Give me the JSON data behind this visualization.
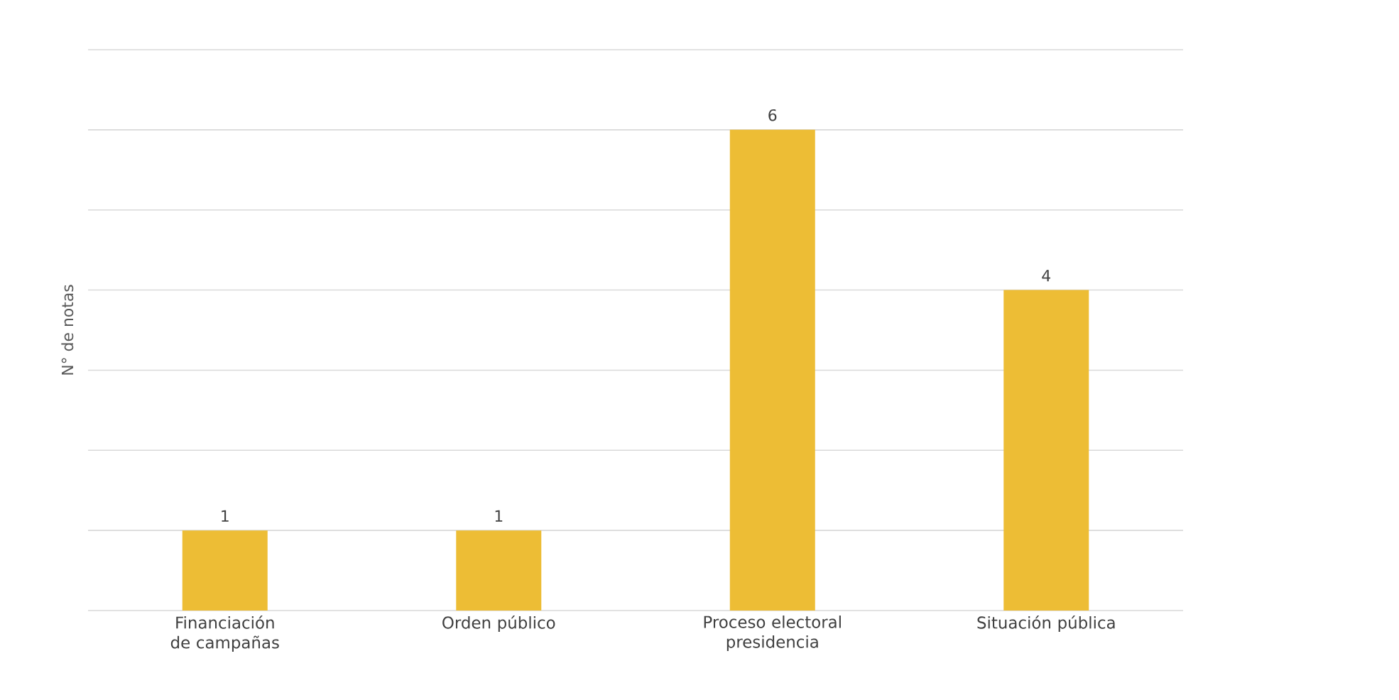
{
  "chart_data": {
    "type": "bar",
    "ylabel": "N° de notas",
    "categories": [
      "Financiación de campañas",
      "Orden público",
      "Proceso electoral presidencia",
      "Situación pública"
    ],
    "series": [
      {
        "color": "#edbd35",
        "values": [
          1,
          1,
          6,
          4
        ]
      }
    ],
    "ylim": [
      0,
      7
    ],
    "yticks": [
      {
        "value": 0,
        "label": null
      },
      {
        "value": 1,
        "label": null
      },
      {
        "value": 2,
        "label": null
      },
      {
        "value": 3,
        "label": null
      },
      {
        "value": 4,
        "label": null
      },
      {
        "value": 5,
        "label": null
      },
      {
        "value": 6,
        "label": null
      },
      {
        "value": 7,
        "label": null
      }
    ],
    "grid": "y",
    "tick_labels": "x",
    "data_labels": true
  }
}
